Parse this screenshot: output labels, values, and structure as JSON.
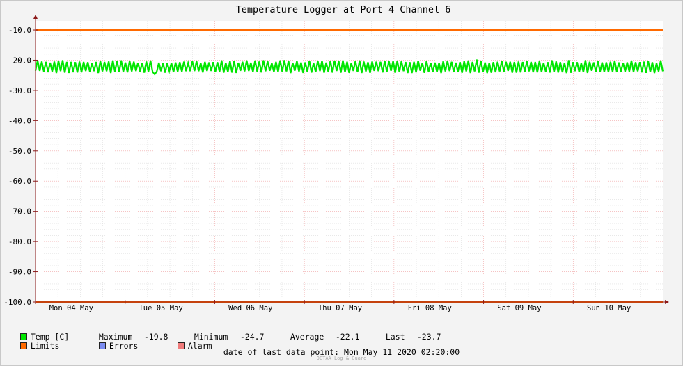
{
  "chart_data": {
    "type": "line",
    "title": "Temperature Logger at Port 4 Channel 6",
    "ylim": [
      -100,
      -7
    ],
    "y_ticks": [
      "-10.0",
      "-20.0",
      "-30.0",
      "-40.0",
      "-50.0",
      "-60.0",
      "-70.0",
      "-80.0",
      "-90.0",
      "-100.0"
    ],
    "y_tick_values": [
      -10,
      -20,
      -30,
      -40,
      -50,
      -60,
      -70,
      -80,
      -90,
      -100
    ],
    "x_range_days": [
      "Mon 04 May",
      "Tue 05 May",
      "Wed 06 May",
      "Thu 07 May",
      "Fri 08 May",
      "Sat 09 May",
      "Sun 10 May"
    ],
    "x_ticks": [
      "Mon 04 May",
      "Tue 05 May",
      "Wed 06 May",
      "Thu 07 May",
      "Fri 08 May",
      "Sat 09 May",
      "Sun 10 May"
    ],
    "grid": true,
    "series": [
      {
        "name": "Temp [C]",
        "color": "#00e600",
        "oscillation": {
          "min": -24.7,
          "max": -19.8,
          "typical_low": -23.5,
          "typical_high": -21.0
        }
      },
      {
        "name": "Limits",
        "color": "#ff6a00",
        "upper": -10.0,
        "lower": -100.0
      }
    ],
    "legend": [
      {
        "name": "Temp [C]",
        "color": "#00e600"
      },
      {
        "name": "Limits",
        "color": "#ff6a00"
      },
      {
        "name": "Errors",
        "color": "#7b8cf0"
      },
      {
        "name": "Alarm",
        "color": "#f07b7b"
      }
    ],
    "stats": {
      "maximum_label": "Maximum",
      "maximum": "-19.8",
      "minimum_label": "Minimum",
      "minimum": "-24.7",
      "average_label": "Average",
      "average": "-22.1",
      "last_label": "Last",
      "last": "-23.7"
    },
    "footer": {
      "label": "date of last data point:",
      "value": "Mon May 11 2020 02:20:00"
    },
    "brand": "OCTAA Log & Guard",
    "colors": {
      "grid_minor": "#dcdcdc",
      "grid_major": "#f0a0a0",
      "axis": "#8b1a1a"
    }
  }
}
